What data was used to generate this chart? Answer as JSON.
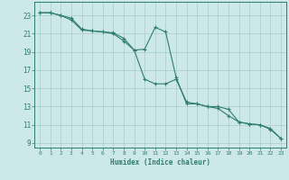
{
  "xlabel": "Humidex (Indice chaleur)",
  "x": [
    0,
    1,
    2,
    3,
    4,
    5,
    6,
    7,
    8,
    9,
    10,
    11,
    12,
    13,
    14,
    15,
    16,
    17,
    18,
    19,
    20,
    21,
    22,
    23
  ],
  "line1": [
    23.3,
    23.3,
    23.0,
    22.7,
    21.5,
    21.3,
    21.2,
    21.1,
    20.5,
    19.2,
    19.3,
    21.7,
    21.2,
    16.2,
    13.3,
    13.3,
    13.0,
    13.0,
    12.7,
    11.3,
    11.1,
    11.0,
    10.6,
    9.5
  ],
  "line2": [
    23.3,
    23.3,
    23.0,
    22.5,
    21.4,
    21.3,
    21.2,
    21.0,
    20.2,
    19.2,
    16.0,
    15.5,
    15.5,
    16.0,
    13.5,
    13.3,
    13.0,
    12.8,
    12.0,
    11.3,
    11.1,
    11.0,
    10.5,
    9.5
  ],
  "line_color": "#2e7d6e",
  "background_color": "#cce8e8",
  "grid_color": "#aacccc",
  "xlim": [
    -0.5,
    23.5
  ],
  "ylim": [
    8.5,
    24.5
  ],
  "yticks": [
    9,
    11,
    13,
    15,
    17,
    19,
    21,
    23
  ],
  "xticks": [
    0,
    1,
    2,
    3,
    4,
    5,
    6,
    7,
    8,
    9,
    10,
    11,
    12,
    13,
    14,
    15,
    16,
    17,
    18,
    19,
    20,
    21,
    22,
    23
  ],
  "figsize": [
    3.2,
    2.0
  ],
  "dpi": 100
}
